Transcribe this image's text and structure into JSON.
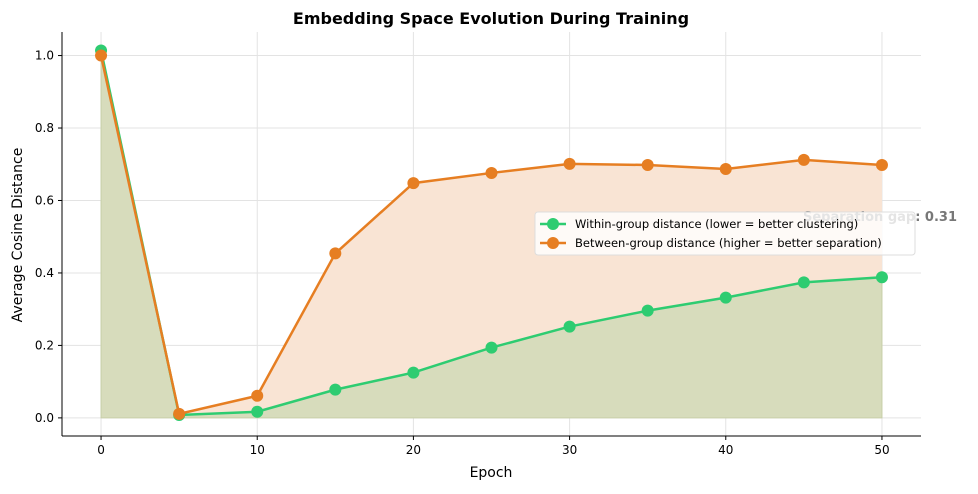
{
  "chart_data": {
    "type": "line",
    "title": "Embedding Space Evolution During Training",
    "xlabel": "Epoch",
    "ylabel": "Average Cosine Distance",
    "xlim": [
      -2.5,
      52.5
    ],
    "ylim": [
      -0.05,
      1.065
    ],
    "xticks": [
      0,
      10,
      20,
      30,
      40,
      50
    ],
    "yticks": [
      "0.0",
      "0.2",
      "0.4",
      "0.6",
      "0.8",
      "1.0"
    ],
    "grid": true,
    "legend_position": "center-right",
    "x": [
      0,
      5,
      10,
      15,
      20,
      25,
      30,
      35,
      40,
      45,
      50
    ],
    "series": [
      {
        "name": "Within-group distance (lower = better clustering)",
        "color": "#2ecc71",
        "fill": "#d7dcbc",
        "values": [
          1.014,
          0.008,
          0.017,
          0.078,
          0.125,
          0.194,
          0.252,
          0.296,
          0.332,
          0.374,
          0.388
        ]
      },
      {
        "name": "Between-group distance (higher = better separation)",
        "color": "#e67e22",
        "fill": "#f9e4d4",
        "values": [
          1.0,
          0.011,
          0.061,
          0.454,
          0.648,
          0.676,
          0.701,
          0.698,
          0.687,
          0.712,
          0.698
        ]
      }
    ],
    "annotation": "Separation gap: 0.31"
  }
}
